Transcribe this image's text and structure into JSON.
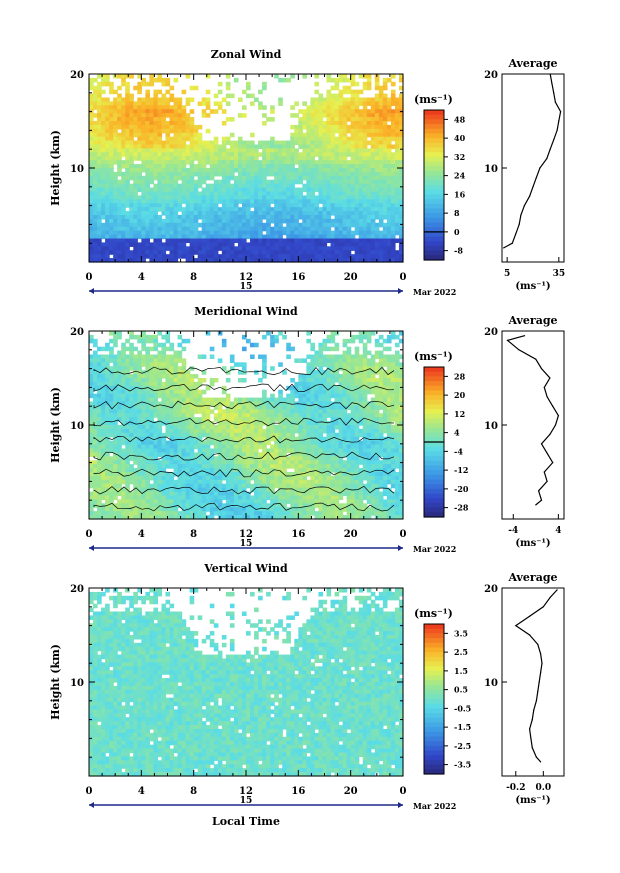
{
  "chart_data": [
    {
      "type": "heatmap",
      "title": "Zonal Wind",
      "ylabel": "Height (km)",
      "xlabel": "",
      "xlim": [
        0,
        24
      ],
      "ylim": [
        0,
        20
      ],
      "xticks": [
        "0",
        "4",
        "8",
        "12",
        "16",
        "20",
        "0"
      ],
      "yticks": [
        "20",
        "10"
      ],
      "date_label": "15",
      "month_label": "Mar 2022",
      "colorbar": {
        "unit": "(ms⁻¹)",
        "levels": [
          "48",
          "40",
          "32",
          "24",
          "16",
          "8",
          "0",
          "-8"
        ],
        "min": -12,
        "max": 52
      },
      "profile": {
        "title": "Average",
        "xlabel": "(ms⁻¹)",
        "xticks": [
          "5",
          "35"
        ],
        "xlim": [
          2,
          38
        ],
        "heights": [
          1.5,
          2,
          3,
          4,
          5,
          6,
          7,
          8,
          9,
          10,
          11,
          12,
          13,
          14,
          15,
          16,
          17,
          18,
          19,
          20
        ],
        "values": [
          3,
          8,
          10,
          12,
          13,
          15,
          18,
          20,
          22,
          24,
          28,
          30,
          32,
          34,
          35,
          36,
          33,
          32,
          31,
          30
        ]
      }
    },
    {
      "type": "heatmap",
      "title": "Meridional Wind",
      "ylabel": "Height (km)",
      "xlabel": "",
      "xlim": [
        0,
        24
      ],
      "ylim": [
        0,
        20
      ],
      "xticks": [
        "0",
        "4",
        "8",
        "12",
        "16",
        "20",
        "0"
      ],
      "yticks": [
        "20",
        "10"
      ],
      "date_label": "15",
      "month_label": "Mar 2022",
      "colorbar": {
        "unit": "(ms⁻¹)",
        "levels": [
          "28",
          "20",
          "12",
          "4",
          "-4",
          "-12",
          "-20",
          "-28"
        ],
        "min": -32,
        "max": 32
      },
      "profile": {
        "title": "Average",
        "xlabel": "(ms⁻¹)",
        "xticks": [
          "-4",
          "4"
        ],
        "xlim": [
          -6,
          5
        ],
        "heights": [
          1.5,
          2,
          3,
          4,
          5,
          6,
          7,
          8,
          9,
          10,
          11,
          12,
          13,
          14,
          15,
          16,
          17,
          18,
          19,
          19.5
        ],
        "values": [
          0,
          1,
          0.5,
          2,
          1.5,
          3,
          2,
          1,
          2.5,
          3.5,
          4,
          3,
          2,
          1.5,
          2.5,
          1,
          0,
          -3,
          -5,
          -2
        ]
      }
    },
    {
      "type": "heatmap",
      "title": "Vertical Wind",
      "ylabel": "Height (km)",
      "xlabel": "Local Time",
      "xlim": [
        0,
        24
      ],
      "ylim": [
        0,
        20
      ],
      "xticks": [
        "0",
        "4",
        "8",
        "12",
        "16",
        "20",
        "0"
      ],
      "yticks": [
        "20",
        "10"
      ],
      "date_label": "15",
      "month_label": "Mar 2022",
      "colorbar": {
        "unit": "(ms⁻¹)",
        "levels": [
          "3.5",
          "2.5",
          "1.5",
          "0.5",
          "-0.5",
          "-1.5",
          "-2.5",
          "-3.5"
        ],
        "min": -4,
        "max": 4
      },
      "profile": {
        "title": "Average",
        "xlabel": "(ms⁻¹)",
        "xticks": [
          "-0.2",
          "0.0"
        ],
        "xlim": [
          -0.3,
          0.15
        ],
        "heights": [
          1.5,
          2,
          3,
          4,
          5,
          6,
          7,
          8,
          9,
          10,
          11,
          12,
          13,
          14,
          15,
          16,
          17,
          18,
          19,
          19.8
        ],
        "values": [
          -0.02,
          -0.05,
          -0.08,
          -0.09,
          -0.1,
          -0.08,
          -0.07,
          -0.05,
          -0.04,
          -0.03,
          -0.02,
          -0.01,
          -0.02,
          -0.04,
          -0.1,
          -0.2,
          -0.1,
          0.0,
          0.05,
          0.1
        ]
      }
    }
  ]
}
